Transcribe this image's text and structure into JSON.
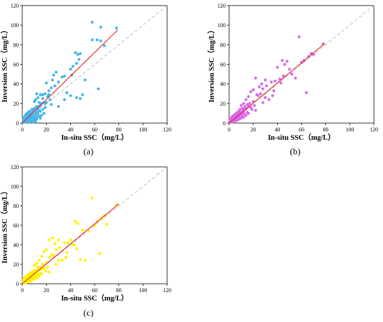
{
  "chart_data": [
    {
      "type": "scatter",
      "panel_label": "(a)",
      "xlabel": "In-situ SSC（mg/L）",
      "ylabel": "Inversion SSC（mg/L）",
      "xlim": [
        0,
        120
      ],
      "ylim": [
        0,
        120
      ],
      "xticks": [
        "0",
        "20",
        "40",
        "60",
        "80",
        "100",
        "120"
      ],
      "yticks": [
        "0",
        "20",
        "40",
        "60",
        "80",
        "100",
        "120"
      ],
      "point_color": "#47B6EA",
      "fit_color": "#E8211C",
      "fit_line": {
        "x": [
          0,
          79
        ],
        "y": [
          0,
          95
        ]
      },
      "reference_line": {
        "x": [
          0,
          120
        ],
        "y": [
          0,
          120
        ]
      },
      "points": [
        [
          58,
          103
        ],
        [
          68,
          79
        ],
        [
          78,
          97
        ],
        [
          65,
          84
        ],
        [
          65,
          98
        ],
        [
          58,
          85
        ],
        [
          62,
          85
        ],
        [
          44,
          72
        ],
        [
          46,
          70
        ],
        [
          48,
          71
        ],
        [
          47,
          65
        ],
        [
          45,
          61
        ],
        [
          42,
          58
        ],
        [
          40,
          55
        ],
        [
          52,
          44
        ],
        [
          41,
          49
        ],
        [
          35,
          48
        ],
        [
          33,
          47
        ],
        [
          28,
          52
        ],
        [
          26,
          49
        ],
        [
          25,
          44
        ],
        [
          30,
          42
        ],
        [
          27,
          38
        ],
        [
          24,
          36
        ],
        [
          20,
          41
        ],
        [
          22,
          33
        ],
        [
          19,
          30
        ],
        [
          17,
          29
        ],
        [
          17,
          25
        ],
        [
          15,
          29
        ],
        [
          12,
          30
        ],
        [
          13,
          26
        ],
        [
          11,
          24
        ],
        [
          10,
          22
        ],
        [
          14,
          21
        ],
        [
          18,
          21
        ],
        [
          16,
          20
        ],
        [
          21,
          27
        ],
        [
          22,
          29
        ],
        [
          24,
          19
        ],
        [
          30,
          17
        ],
        [
          37,
          31
        ],
        [
          40,
          28
        ],
        [
          35,
          24
        ],
        [
          45,
          26
        ],
        [
          48,
          25
        ],
        [
          50,
          29
        ],
        [
          63,
          35
        ],
        [
          23,
          24
        ],
        [
          20,
          21
        ],
        [
          19,
          20
        ],
        [
          12,
          17
        ],
        [
          10,
          15
        ],
        [
          8,
          14
        ],
        [
          6,
          12
        ],
        [
          5,
          11
        ],
        [
          4,
          10
        ],
        [
          3,
          9
        ],
        [
          2,
          7
        ],
        [
          1,
          5
        ],
        [
          2,
          3
        ],
        [
          3,
          4
        ],
        [
          4,
          6
        ],
        [
          5,
          8
        ],
        [
          6,
          9
        ],
        [
          7,
          10
        ],
        [
          8,
          11
        ],
        [
          9,
          12
        ],
        [
          10,
          13
        ],
        [
          11,
          14
        ],
        [
          12,
          15
        ],
        [
          13,
          16
        ],
        [
          14,
          17
        ],
        [
          15,
          18
        ],
        [
          3,
          2
        ],
        [
          4,
          3
        ],
        [
          5,
          4
        ],
        [
          6,
          5
        ],
        [
          7,
          6
        ],
        [
          8,
          7
        ],
        [
          9,
          8
        ],
        [
          10,
          9
        ],
        [
          11,
          10
        ],
        [
          12,
          11
        ],
        [
          13,
          12
        ],
        [
          14,
          13
        ],
        [
          1,
          1
        ],
        [
          2,
          1
        ],
        [
          1,
          2
        ],
        [
          3,
          1
        ],
        [
          2,
          2
        ],
        [
          4,
          2
        ],
        [
          6,
          3
        ],
        [
          8,
          4
        ],
        [
          10,
          5
        ],
        [
          12,
          6
        ],
        [
          14,
          7
        ],
        [
          16,
          8
        ],
        [
          18,
          10
        ],
        [
          15,
          12
        ],
        [
          17,
          14
        ],
        [
          19,
          16
        ],
        [
          7,
          3
        ],
        [
          9,
          5
        ],
        [
          11,
          7
        ],
        [
          13,
          9
        ],
        [
          5,
          7
        ],
        [
          6,
          4
        ],
        [
          4,
          5
        ],
        [
          3,
          6
        ],
        [
          2,
          5
        ],
        [
          1,
          3
        ],
        [
          8,
          2
        ],
        [
          10,
          3
        ],
        [
          12,
          4
        ],
        [
          9,
          1
        ],
        [
          6,
          1
        ],
        [
          15,
          5
        ],
        [
          11,
          2
        ],
        [
          7,
          8
        ]
      ]
    },
    {
      "type": "scatter",
      "panel_label": "(b)",
      "xlabel": "In-situ SSC（mg/L）",
      "ylabel": "Inversion SSC（mg/L）",
      "xlim": [
        0,
        120
      ],
      "ylim": [
        0,
        120
      ],
      "xticks": [
        "0",
        "20",
        "40",
        "60",
        "80",
        "100",
        "120"
      ],
      "yticks": [
        "0",
        "20",
        "40",
        "60",
        "80",
        "100",
        "120"
      ],
      "point_color": "#D66BEB",
      "fit_color": "#E8211C",
      "fit_line": {
        "x": [
          0,
          79
        ],
        "y": [
          0,
          81
        ]
      },
      "reference_line": {
        "x": [
          0,
          120
        ],
        "y": [
          0,
          120
        ]
      },
      "points": [
        [
          58,
          88
        ],
        [
          78,
          81
        ],
        [
          68,
          71
        ],
        [
          66,
          68
        ],
        [
          70,
          70
        ],
        [
          64,
          31
        ],
        [
          44,
          64
        ],
        [
          46,
          60
        ],
        [
          50,
          55
        ],
        [
          40,
          57
        ],
        [
          42,
          45
        ],
        [
          45,
          48
        ],
        [
          38,
          43
        ],
        [
          35,
          42
        ],
        [
          30,
          44
        ],
        [
          28,
          35
        ],
        [
          27,
          40
        ],
        [
          25,
          37
        ],
        [
          22,
          46
        ],
        [
          20,
          34
        ],
        [
          26,
          30
        ],
        [
          30,
          26
        ],
        [
          33,
          24
        ],
        [
          23,
          29
        ],
        [
          18,
          32
        ],
        [
          16,
          27
        ],
        [
          14,
          24
        ],
        [
          12,
          20
        ],
        [
          10,
          18
        ],
        [
          15,
          19
        ],
        [
          17,
          20
        ],
        [
          13,
          17
        ],
        [
          18,
          16
        ],
        [
          20,
          22
        ],
        [
          24,
          28
        ],
        [
          19,
          14
        ],
        [
          16,
          17
        ],
        [
          11,
          15
        ],
        [
          9,
          14
        ],
        [
          8,
          12
        ],
        [
          7,
          11
        ],
        [
          6,
          10
        ],
        [
          5,
          9
        ],
        [
          4,
          8
        ],
        [
          3,
          7
        ],
        [
          2,
          6
        ],
        [
          1,
          4
        ],
        [
          2,
          3
        ],
        [
          3,
          4
        ],
        [
          4,
          5
        ],
        [
          5,
          6
        ],
        [
          6,
          7
        ],
        [
          7,
          8
        ],
        [
          8,
          9
        ],
        [
          9,
          10
        ],
        [
          10,
          11
        ],
        [
          11,
          12
        ],
        [
          12,
          13
        ],
        [
          13,
          14
        ],
        [
          14,
          15
        ],
        [
          3,
          2
        ],
        [
          4,
          3
        ],
        [
          5,
          4
        ],
        [
          6,
          5
        ],
        [
          7,
          6
        ],
        [
          8,
          7
        ],
        [
          9,
          8
        ],
        [
          10,
          9
        ],
        [
          11,
          10
        ],
        [
          12,
          11
        ],
        [
          1,
          1
        ],
        [
          2,
          1
        ],
        [
          1,
          2
        ],
        [
          3,
          1
        ],
        [
          2,
          2
        ],
        [
          4,
          2
        ],
        [
          6,
          3
        ],
        [
          8,
          4
        ],
        [
          10,
          5
        ],
        [
          12,
          6
        ],
        [
          14,
          8
        ],
        [
          16,
          10
        ],
        [
          5,
          2
        ],
        [
          7,
          3
        ],
        [
          9,
          5
        ],
        [
          11,
          7
        ],
        [
          13,
          9
        ],
        [
          15,
          11
        ],
        [
          48,
          63
        ],
        [
          55,
          46
        ],
        [
          60,
          62
        ],
        [
          36,
          28
        ],
        [
          21,
          18
        ],
        [
          22,
          13
        ],
        [
          28,
          21
        ],
        [
          31,
          38
        ],
        [
          37,
          33
        ],
        [
          43,
          41
        ],
        [
          52,
          50
        ],
        [
          62,
          64
        ]
      ]
    },
    {
      "type": "scatter",
      "panel_label": "(c)",
      "xlabel": "In-situ SSC（mg/L）",
      "ylabel": "Inversion SSC（mg/L）",
      "xlim": [
        0,
        120
      ],
      "ylim": [
        0,
        120
      ],
      "xticks": [
        "0",
        "20",
        "40",
        "60",
        "80",
        "100",
        "120"
      ],
      "yticks": [
        "0",
        "20",
        "40",
        "60",
        "80",
        "100",
        "120"
      ],
      "point_color": "#FFF200",
      "fit_color": "#E8211C",
      "fit_line": {
        "x": [
          0,
          80
        ],
        "y": [
          0,
          82
        ]
      },
      "reference_line": {
        "x": [
          0,
          120
        ],
        "y": [
          0,
          120
        ]
      },
      "points": [
        [
          58,
          88
        ],
        [
          78,
          81
        ],
        [
          68,
          70
        ],
        [
          66,
          67
        ],
        [
          70,
          61
        ],
        [
          64,
          31
        ],
        [
          44,
          64
        ],
        [
          46,
          62
        ],
        [
          50,
          55
        ],
        [
          40,
          45
        ],
        [
          42,
          40
        ],
        [
          45,
          36
        ],
        [
          38,
          42
        ],
        [
          35,
          42
        ],
        [
          30,
          45
        ],
        [
          28,
          35
        ],
        [
          27,
          41
        ],
        [
          25,
          47
        ],
        [
          22,
          45
        ],
        [
          20,
          35
        ],
        [
          26,
          29
        ],
        [
          30,
          24
        ],
        [
          33,
          24
        ],
        [
          23,
          27
        ],
        [
          18,
          33
        ],
        [
          16,
          28
        ],
        [
          14,
          24
        ],
        [
          12,
          21
        ],
        [
          10,
          19
        ],
        [
          15,
          17
        ],
        [
          17,
          20
        ],
        [
          13,
          17
        ],
        [
          18,
          16
        ],
        [
          20,
          22
        ],
        [
          24,
          30
        ],
        [
          19,
          13
        ],
        [
          16,
          15
        ],
        [
          11,
          14
        ],
        [
          9,
          13
        ],
        [
          8,
          12
        ],
        [
          7,
          11
        ],
        [
          6,
          10
        ],
        [
          5,
          9
        ],
        [
          4,
          8
        ],
        [
          3,
          7
        ],
        [
          2,
          6
        ],
        [
          1,
          4
        ],
        [
          2,
          3
        ],
        [
          3,
          4
        ],
        [
          4,
          5
        ],
        [
          5,
          6
        ],
        [
          6,
          7
        ],
        [
          7,
          8
        ],
        [
          8,
          9
        ],
        [
          9,
          10
        ],
        [
          10,
          11
        ],
        [
          11,
          12
        ],
        [
          12,
          13
        ],
        [
          13,
          14
        ],
        [
          14,
          15
        ],
        [
          3,
          2
        ],
        [
          4,
          3
        ],
        [
          5,
          4
        ],
        [
          6,
          5
        ],
        [
          7,
          6
        ],
        [
          8,
          7
        ],
        [
          9,
          8
        ],
        [
          10,
          9
        ],
        [
          11,
          10
        ],
        [
          12,
          11
        ],
        [
          1,
          1
        ],
        [
          2,
          1
        ],
        [
          1,
          2
        ],
        [
          3,
          1
        ],
        [
          2,
          2
        ],
        [
          4,
          2
        ],
        [
          6,
          3
        ],
        [
          8,
          4
        ],
        [
          10,
          5
        ],
        [
          12,
          6
        ],
        [
          14,
          8
        ],
        [
          16,
          10
        ],
        [
          5,
          2
        ],
        [
          7,
          3
        ],
        [
          9,
          5
        ],
        [
          11,
          7
        ],
        [
          13,
          9
        ],
        [
          15,
          11
        ],
        [
          48,
          25
        ],
        [
          52,
          24
        ],
        [
          60,
          60
        ],
        [
          36,
          27
        ],
        [
          21,
          17
        ],
        [
          22,
          12
        ],
        [
          28,
          20
        ],
        [
          31,
          37
        ],
        [
          37,
          32
        ],
        [
          43,
          40
        ],
        [
          55,
          54
        ],
        [
          62,
          64
        ]
      ]
    }
  ]
}
